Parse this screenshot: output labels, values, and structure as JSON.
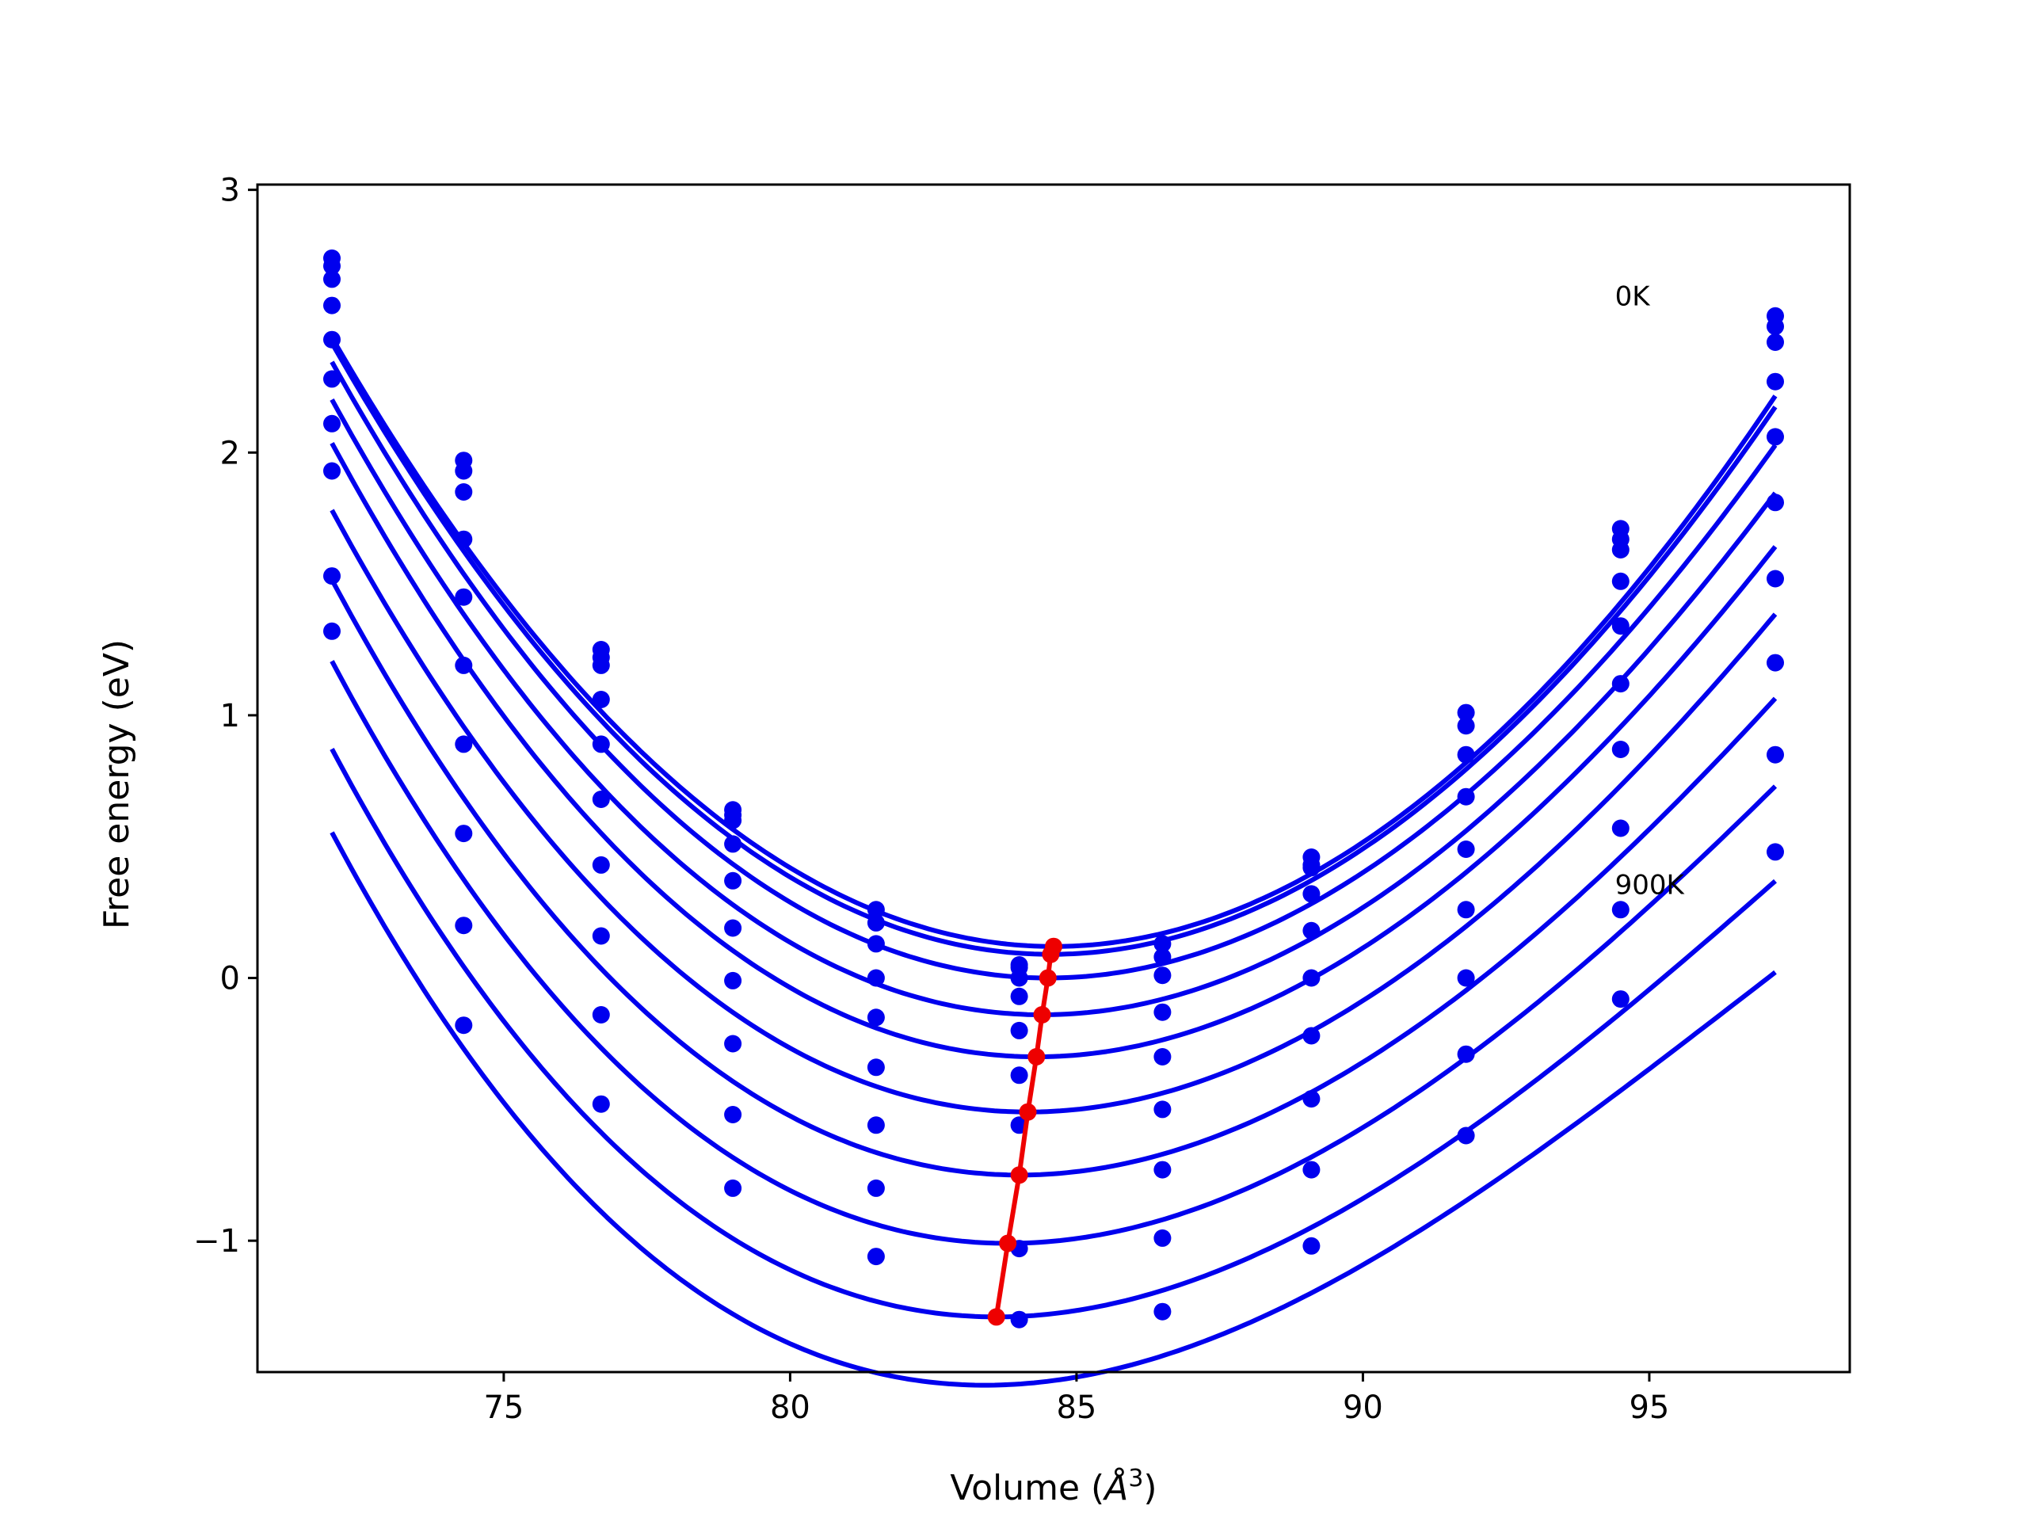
{
  "chart_data": {
    "type": "line",
    "title": "",
    "xlabel_main": "Volume (",
    "xlabel_sym": "Å",
    "xlabel_sup": "3",
    "xlabel_close": ")",
    "ylabel": "Free energy (eV)",
    "xlim": [
      70.7,
      98.5
    ],
    "ylim": [
      -1.5,
      3.02
    ],
    "xticks": [
      75,
      80,
      85,
      90,
      95
    ],
    "xtick_labels": [
      "75",
      "80",
      "85",
      "90",
      "95"
    ],
    "yticks": [
      -1,
      0,
      1,
      2,
      3
    ],
    "ytick_labels": [
      "−1",
      "0",
      "1",
      "2",
      "3"
    ],
    "grid": false,
    "legend": "none",
    "colors": {
      "curves": "#0000ee",
      "points": "#0000ee",
      "minima": "#ee0000",
      "axes": "#000000"
    },
    "annotations": [
      {
        "text": "0K",
        "x": 94.4,
        "y": 2.56
      },
      {
        "text": "900K",
        "x": 94.4,
        "y": 0.32
      }
    ],
    "volumes": [
      72.0,
      74.3,
      76.7,
      79.0,
      81.5,
      84.0,
      86.5,
      89.1,
      91.8,
      94.5,
      97.2
    ],
    "fit_x_range": [
      72.0,
      97.2
    ],
    "series": [
      {
        "label": "0K",
        "min_v": 84.6,
        "min_e": 0.12,
        "B": 0.0139,
        "Bp": 0.04,
        "points": [
          2.74,
          1.97,
          1.25,
          0.64,
          0.26,
          0.05,
          0.13,
          0.46,
          1.01,
          1.71,
          2.52
        ]
      },
      {
        "min_v": 84.55,
        "min_e": 0.09,
        "B": 0.0139,
        "Bp": 0.05,
        "points": [
          2.71,
          1.93,
          1.22,
          0.62,
          0.21,
          0.04,
          0.08,
          0.43,
          0.96,
          1.67,
          2.48
        ]
      },
      {
        "min_v": 84.5,
        "min_e": 0.0,
        "B": 0.0138,
        "Bp": 0.07,
        "points": [
          2.66,
          1.85,
          1.19,
          0.6,
          0.13,
          0.0,
          0.01,
          0.42,
          0.85,
          1.63,
          2.42
        ]
      },
      {
        "min_v": 84.4,
        "min_e": -0.14,
        "B": 0.0137,
        "Bp": 0.09,
        "points": [
          2.56,
          1.67,
          1.06,
          0.51,
          0.0,
          -0.07,
          -0.13,
          0.32,
          0.69,
          1.51,
          2.27
        ]
      },
      {
        "min_v": 84.3,
        "min_e": -0.3,
        "B": 0.0136,
        "Bp": 0.11,
        "points": [
          2.43,
          1.45,
          0.89,
          0.37,
          -0.15,
          -0.2,
          -0.3,
          0.18,
          0.49,
          1.34,
          2.06
        ]
      },
      {
        "min_v": 84.15,
        "min_e": -0.51,
        "B": 0.0134,
        "Bp": 0.13,
        "points": [
          2.28,
          1.19,
          0.68,
          0.19,
          -0.34,
          -0.37,
          -0.5,
          0.0,
          0.26,
          1.12,
          1.81
        ]
      },
      {
        "min_v": 84.0,
        "min_e": -0.75,
        "B": 0.0132,
        "Bp": 0.16,
        "points": [
          2.11,
          0.89,
          0.43,
          -0.01,
          -0.56,
          -0.56,
          -0.73,
          -0.22,
          0.0,
          0.87,
          1.52
        ]
      },
      {
        "min_v": 83.8,
        "min_e": -1.01,
        "B": 0.013,
        "Bp": 0.19,
        "points": [
          1.93,
          0.55,
          0.16,
          -0.25,
          -0.8,
          -1.03,
          -0.99,
          -0.46,
          -0.29,
          0.57,
          1.2
        ]
      },
      {
        "label": "900K",
        "min_v": 83.6,
        "min_e": -1.29,
        "B": 0.0128,
        "Bp": 0.22,
        "points": [
          1.53,
          0.2,
          -0.14,
          -0.52,
          -1.06,
          -1.3,
          -1.27,
          -0.73,
          -0.6,
          0.26,
          0.85
        ]
      },
      {
        "min_v": 83.4,
        "min_e": -1.55,
        "B": 0.0126,
        "Bp": 0.25,
        "points": [
          1.32,
          -0.18,
          -0.48,
          -0.8,
          null,
          null,
          null,
          -1.02,
          null,
          -0.08,
          0.48
        ]
      }
    ],
    "minima_line": {
      "x": [
        84.6,
        84.55,
        84.5,
        84.4,
        84.3,
        84.15,
        84.0,
        83.8,
        83.6
      ],
      "y": [
        0.12,
        0.09,
        0.0,
        -0.14,
        -0.3,
        -0.51,
        -0.75,
        -1.01,
        -1.29
      ]
    }
  }
}
